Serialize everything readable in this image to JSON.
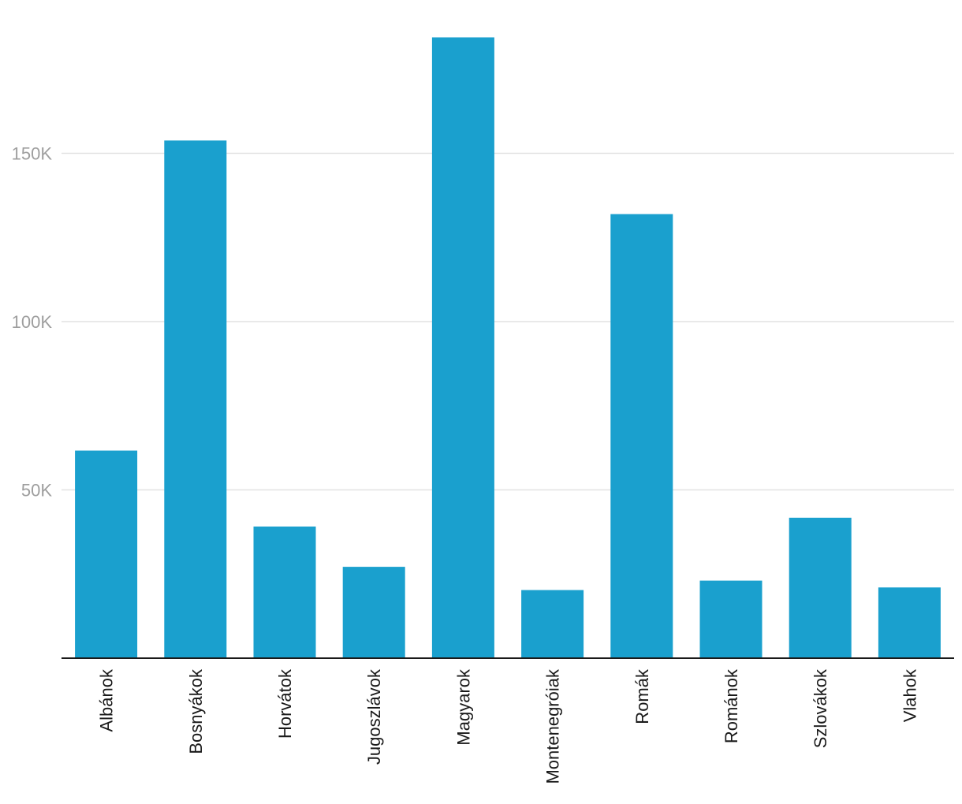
{
  "chart_data": {
    "type": "bar",
    "title": "",
    "xlabel": "",
    "ylabel": "",
    "categories": [
      "Albánok",
      "Bosnyákok",
      "Horvátok",
      "Jugoszlávok",
      "Magyarok",
      "Montenegróiak",
      "Romák",
      "Románok",
      "Szlovákok",
      "Vlahok"
    ],
    "values": [
      61687,
      153801,
      39107,
      27143,
      184442,
      20238,
      131936,
      23044,
      41730,
      21013
    ],
    "ylim": [
      0,
      185000
    ],
    "y_ticks": [
      {
        "value": 50000,
        "label": "50K"
      },
      {
        "value": 100000,
        "label": "100K"
      },
      {
        "value": 150000,
        "label": "150K"
      }
    ],
    "bar_color": "#1aa0ce",
    "grid": true,
    "legend": "none"
  }
}
